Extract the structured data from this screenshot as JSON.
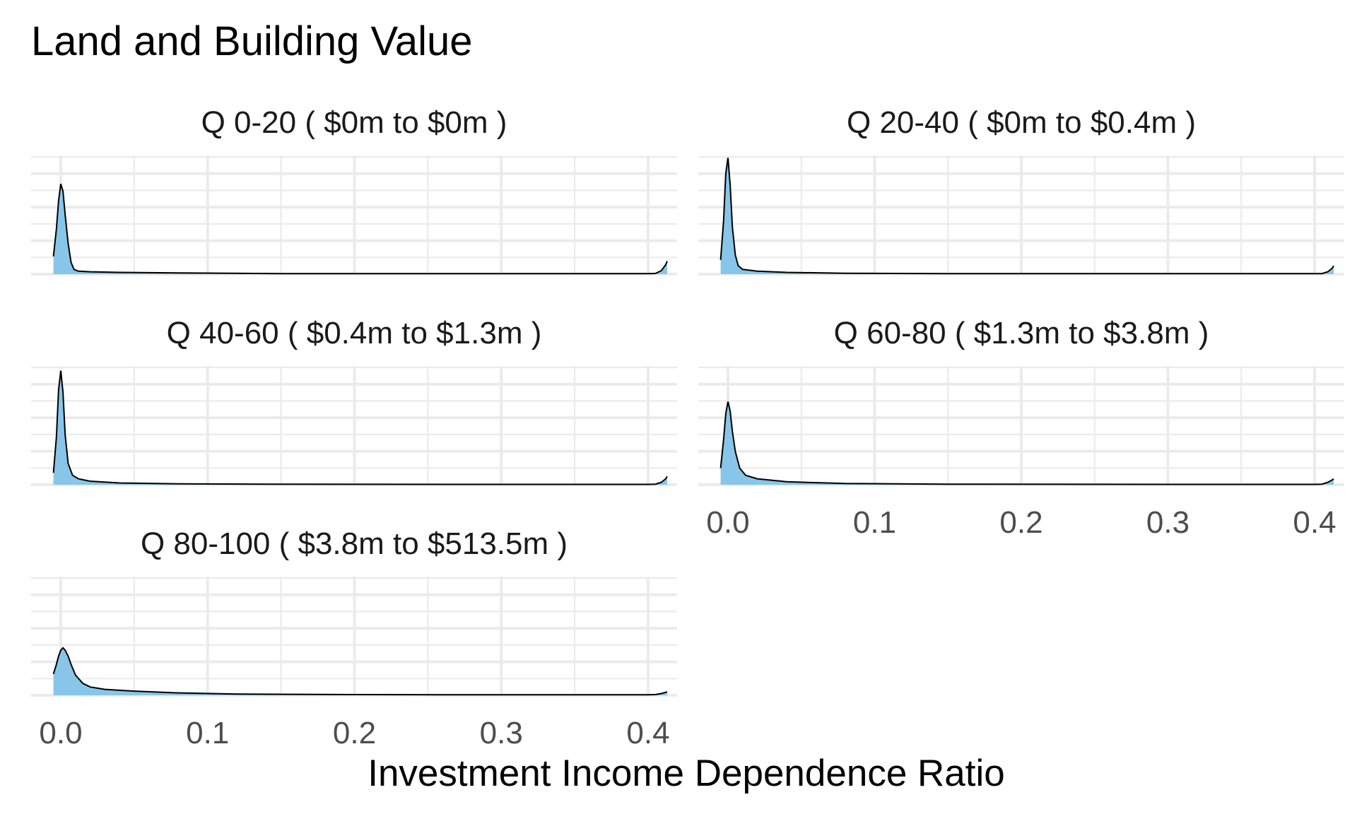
{
  "chart_data": {
    "type": "area",
    "title": "Land and Building Value",
    "xlabel": "Investment Income Dependence Ratio",
    "ylabel": "",
    "xlim": [
      -0.005,
      0.415
    ],
    "x_ticks": [
      "0.0",
      "0.1",
      "0.2",
      "0.3",
      "0.4"
    ],
    "x_tick_values": [
      0,
      0.1,
      0.2,
      0.3,
      0.4
    ],
    "y_ticks_shown": false,
    "grid": true,
    "facet_layout": "wrap, 2 columns",
    "fill_color": "#87C6E8",
    "line_color": "#000000",
    "panels": [
      {
        "label": "Q 0-20   ( $0m to $0m )",
        "show_x_ticks": false,
        "density": [
          [
            -0.005,
            0.15
          ],
          [
            -0.003,
            0.38
          ],
          [
            -0.0015,
            0.62
          ],
          [
            0.0,
            0.76
          ],
          [
            0.0015,
            0.7
          ],
          [
            0.003,
            0.5
          ],
          [
            0.005,
            0.26
          ],
          [
            0.007,
            0.1
          ],
          [
            0.009,
            0.04
          ],
          [
            0.012,
            0.025
          ],
          [
            0.02,
            0.02
          ],
          [
            0.04,
            0.015
          ],
          [
            0.08,
            0.01
          ],
          [
            0.15,
            0.005
          ],
          [
            0.3,
            0.004
          ],
          [
            0.4,
            0.004
          ],
          [
            0.405,
            0.006
          ],
          [
            0.409,
            0.03
          ],
          [
            0.412,
            0.08
          ],
          [
            0.413,
            0.11
          ]
        ]
      },
      {
        "label": "Q 20-40   ( $0m to $0.4m )",
        "show_x_ticks": false,
        "density": [
          [
            -0.005,
            0.12
          ],
          [
            -0.003,
            0.45
          ],
          [
            -0.0015,
            0.85
          ],
          [
            0.0,
            0.98
          ],
          [
            0.0015,
            0.75
          ],
          [
            0.003,
            0.4
          ],
          [
            0.005,
            0.16
          ],
          [
            0.007,
            0.07
          ],
          [
            0.01,
            0.04
          ],
          [
            0.02,
            0.025
          ],
          [
            0.04,
            0.015
          ],
          [
            0.08,
            0.008
          ],
          [
            0.15,
            0.005
          ],
          [
            0.3,
            0.004
          ],
          [
            0.4,
            0.004
          ],
          [
            0.405,
            0.005
          ],
          [
            0.409,
            0.02
          ],
          [
            0.412,
            0.05
          ],
          [
            0.413,
            0.07
          ]
        ]
      },
      {
        "label": "Q 40-60   ( $0.4m to $1.3m )",
        "show_x_ticks": false,
        "density": [
          [
            -0.005,
            0.1
          ],
          [
            -0.003,
            0.4
          ],
          [
            -0.0015,
            0.8
          ],
          [
            0.0,
            0.96
          ],
          [
            0.0015,
            0.78
          ],
          [
            0.003,
            0.42
          ],
          [
            0.005,
            0.18
          ],
          [
            0.008,
            0.08
          ],
          [
            0.012,
            0.05
          ],
          [
            0.02,
            0.03
          ],
          [
            0.04,
            0.015
          ],
          [
            0.08,
            0.008
          ],
          [
            0.15,
            0.004
          ],
          [
            0.3,
            0.003
          ],
          [
            0.4,
            0.003
          ],
          [
            0.405,
            0.005
          ],
          [
            0.409,
            0.02
          ],
          [
            0.412,
            0.05
          ],
          [
            0.413,
            0.07
          ]
        ]
      },
      {
        "label": "Q 60-80   ( $1.3m to $3.8m )",
        "show_x_ticks": true,
        "density": [
          [
            -0.005,
            0.14
          ],
          [
            -0.003,
            0.38
          ],
          [
            -0.0015,
            0.6
          ],
          [
            0.0,
            0.7
          ],
          [
            0.0015,
            0.62
          ],
          [
            0.003,
            0.45
          ],
          [
            0.005,
            0.28
          ],
          [
            0.008,
            0.14
          ],
          [
            0.012,
            0.08
          ],
          [
            0.02,
            0.05
          ],
          [
            0.04,
            0.025
          ],
          [
            0.08,
            0.01
          ],
          [
            0.15,
            0.005
          ],
          [
            0.3,
            0.003
          ],
          [
            0.4,
            0.003
          ],
          [
            0.405,
            0.005
          ],
          [
            0.409,
            0.02
          ],
          [
            0.412,
            0.04
          ],
          [
            0.413,
            0.05
          ]
        ]
      },
      {
        "label": "Q 80-100   ( $3.8m to $513.5m )",
        "show_x_ticks": true,
        "density": [
          [
            -0.005,
            0.18
          ],
          [
            -0.003,
            0.26
          ],
          [
            -0.0015,
            0.33
          ],
          [
            0.0,
            0.38
          ],
          [
            0.0015,
            0.4
          ],
          [
            0.003,
            0.38
          ],
          [
            0.005,
            0.33
          ],
          [
            0.007,
            0.26
          ],
          [
            0.01,
            0.17
          ],
          [
            0.015,
            0.1
          ],
          [
            0.02,
            0.07
          ],
          [
            0.03,
            0.05
          ],
          [
            0.05,
            0.035
          ],
          [
            0.08,
            0.02
          ],
          [
            0.12,
            0.01
          ],
          [
            0.2,
            0.006
          ],
          [
            0.3,
            0.004
          ],
          [
            0.4,
            0.004
          ],
          [
            0.405,
            0.006
          ],
          [
            0.409,
            0.015
          ],
          [
            0.412,
            0.025
          ],
          [
            0.413,
            0.03
          ]
        ]
      }
    ]
  }
}
